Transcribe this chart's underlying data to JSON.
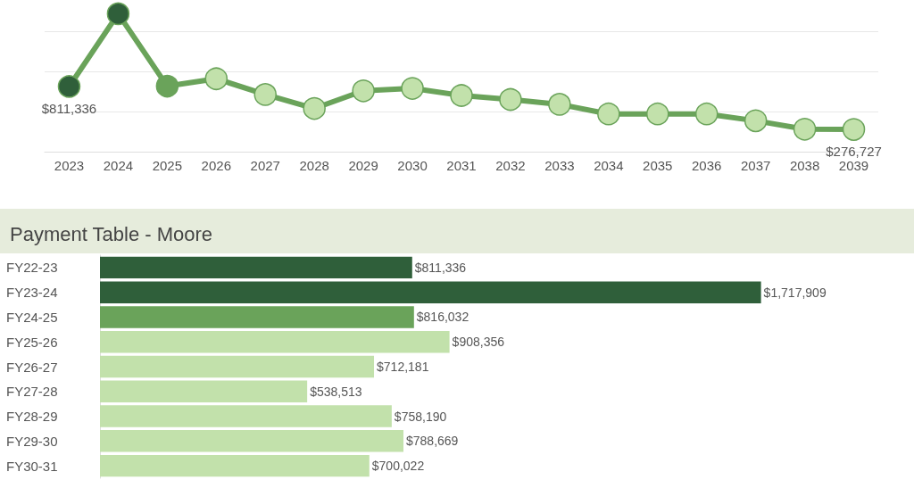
{
  "chart_data": [
    {
      "type": "line",
      "categories": [
        "2023",
        "2024",
        "2025",
        "2026",
        "2027",
        "2028",
        "2029",
        "2030",
        "2031",
        "2032",
        "2033",
        "2034",
        "2035",
        "2036",
        "2037",
        "2038",
        "2039"
      ],
      "values": [
        811336,
        1717909,
        816032,
        908356,
        712181,
        538513,
        758190,
        788669,
        700022,
        650000,
        590000,
        470000,
        470000,
        470000,
        385000,
        280000,
        276727
      ],
      "color": "#6aa35a",
      "colors": [
        "#2f5f3a",
        "#2f5f3a",
        "#6aa35a",
        "#c2e1ab",
        "#c2e1ab",
        "#c2e1ab",
        "#c2e1ab",
        "#c2e1ab",
        "#c2e1ab",
        "#c2e1ab",
        "#c2e1ab",
        "#c2e1ab",
        "#c2e1ab",
        "#c2e1ab",
        "#c2e1ab",
        "#c2e1ab",
        "#c2e1ab"
      ],
      "value_labels": [
        "$811,336",
        null,
        null,
        null,
        null,
        null,
        null,
        null,
        null,
        null,
        null,
        null,
        null,
        null,
        null,
        null,
        "$276,727"
      ],
      "yticks": [
        {
          "value": 0,
          "label": null
        },
        {
          "value": 500000,
          "label": null
        },
        {
          "value": 1000000,
          "label": null
        },
        {
          "value": 1500000,
          "label": null
        }
      ],
      "grid": "y",
      "marker": "circle",
      "tick_labels": "x"
    },
    {
      "type": "bar",
      "orientation": "horizontal",
      "title": "Payment Table - Moore",
      "categories": [
        "FY22-23",
        "FY23-24",
        "FY24-25",
        "FY25-26",
        "FY26-27",
        "FY27-28",
        "FY28-29",
        "FY29-30",
        "FY30-31"
      ],
      "values": [
        811336,
        1717909,
        816032,
        908356,
        712181,
        538513,
        758190,
        788669,
        700022
      ],
      "colors": [
        "#2f5f3a",
        "#2f5f3a",
        "#6aa35a",
        "#c2e1ab",
        "#c2e1ab",
        "#c2e1ab",
        "#c2e1ab",
        "#c2e1ab",
        "#c2e1ab"
      ],
      "value_labels": [
        "$811,336",
        "$1,717,909",
        "$816,032",
        "$908,356",
        "$712,181",
        "$538,513",
        "$758,190",
        "$788,669",
        "$700,022"
      ],
      "tick_labels": "y"
    }
  ]
}
